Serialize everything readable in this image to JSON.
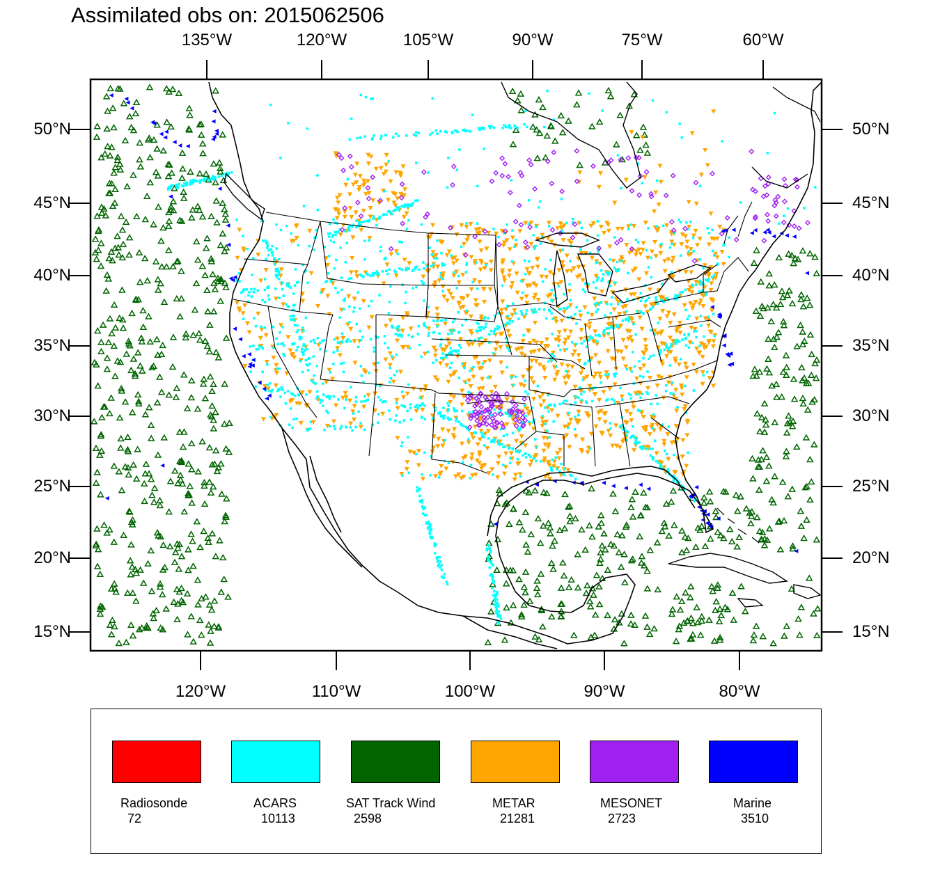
{
  "title": "Assimilated obs on: 2015062506",
  "axes": {
    "top_ticks": [
      "135°W",
      "120°W",
      "105°W",
      "90°W",
      "75°W",
      "60°W"
    ],
    "bottom_ticks": [
      "120°W",
      "110°W",
      "100°W",
      "90°W",
      "80°W"
    ],
    "lat_ticks": [
      "50°N",
      "45°N",
      "40°N",
      "35°N",
      "30°N",
      "25°N",
      "20°N",
      "15°N"
    ]
  },
  "legend": [
    {
      "name": "Radiosonde",
      "count": "72",
      "color": "#ff0000"
    },
    {
      "name": "ACARS",
      "count": "10113",
      "color": "#00ffff"
    },
    {
      "name": "SAT Track Wind",
      "count": "2598",
      "color": "#006400"
    },
    {
      "name": "METAR",
      "count": "21281",
      "color": "#ffa500"
    },
    {
      "name": "MESONET",
      "count": "2723",
      "color": "#a020f0"
    },
    {
      "name": "Marine",
      "count": "3510",
      "color": "#0000ff"
    }
  ],
  "colors": {
    "coastline": "#000000",
    "acars": "#00ffff",
    "sat_track_wind": "#006400",
    "metar": "#ffa500",
    "mesonet": "#a020f0",
    "marine": "#0000ff"
  }
}
